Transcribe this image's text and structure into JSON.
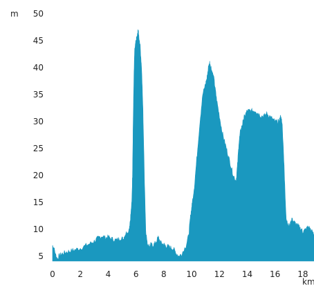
{
  "chart_data": {
    "type": "area",
    "title": "",
    "xlabel": "km",
    "ylabel": "m",
    "xlim": [
      0,
      18.8
    ],
    "ylim": [
      4,
      50
    ],
    "x_ticks": [
      0,
      2,
      4,
      6,
      8,
      10,
      12,
      14,
      16,
      18
    ],
    "y_ticks": [
      5,
      10,
      15,
      20,
      25,
      30,
      35,
      40,
      45,
      50
    ],
    "grid": false,
    "legend": "none",
    "fill_color": "#1a98bf",
    "series": [
      {
        "x": [
          0,
          0.1,
          0.25,
          0.35,
          0.5,
          0.7,
          1,
          1.3,
          1.6,
          2,
          2.4,
          2.8,
          3.1,
          3.3,
          3.6,
          3.8,
          4,
          4.3,
          4.6,
          4.9,
          5.1,
          5.2,
          5.5,
          5.6,
          5.7,
          5.75,
          5.8,
          5.85,
          5.9,
          5.95,
          6,
          6.1,
          6.15,
          6.2,
          6.3,
          6.4,
          6.5,
          6.6,
          6.7,
          6.8,
          6.9,
          7,
          7.05,
          7.2,
          7.4,
          7.6,
          7.8,
          8,
          8.1,
          8.3,
          8.5,
          8.7,
          8.9,
          9.1,
          9.3,
          9.6,
          9.8,
          9.9,
          10,
          10.05,
          10.2,
          10.4,
          10.6,
          10.8,
          11,
          11.1,
          11.2,
          11.3,
          11.4,
          11.5,
          11.6,
          11.7,
          11.8,
          12,
          12.2,
          12.4,
          12.6,
          12.8,
          13,
          13.2,
          13.3,
          13.4,
          13.5,
          13.6,
          13.7,
          13.8,
          14,
          14.2,
          14.4,
          14.6,
          14.8,
          15,
          15.2,
          15.4,
          15.6,
          15.8,
          16,
          16.2,
          16.3,
          16.35,
          16.4,
          16.5,
          16.6,
          16.7,
          16.8,
          17,
          17.1,
          17.2,
          17.3,
          17.5,
          17.7,
          17.9,
          18,
          18.2,
          18.4,
          18.6,
          18.8
        ],
        "y": [
          7,
          6.5,
          5,
          4.5,
          5.2,
          5.5,
          5.8,
          6,
          6.2,
          6.5,
          7,
          7.5,
          8,
          8.5,
          8.8,
          8.4,
          8.6,
          8.2,
          8,
          8.4,
          8.2,
          9,
          10,
          12,
          15,
          20,
          30,
          38,
          43,
          44,
          45,
          46,
          47,
          46,
          44,
          40,
          32,
          20,
          10,
          7.5,
          7,
          6.8,
          7.2,
          7,
          7.5,
          8.5,
          7.5,
          7.2,
          7,
          6.8,
          6.6,
          6.4,
          5.5,
          5,
          5.5,
          7,
          9,
          12,
          14,
          15,
          18,
          24,
          30,
          35,
          37,
          38,
          40,
          41,
          40,
          39,
          38,
          36,
          34,
          31,
          28,
          26,
          24,
          22,
          20,
          19,
          22,
          26,
          28,
          29,
          30,
          31,
          32,
          32,
          32,
          32,
          31.5,
          31,
          31,
          31.5,
          31,
          30.5,
          30,
          30,
          30,
          30.5,
          31,
          30,
          25,
          18,
          12,
          10.5,
          11,
          12,
          11.5,
          11,
          10.5,
          10,
          9.5,
          10,
          10.5,
          9.8,
          9
        ]
      }
    ]
  }
}
